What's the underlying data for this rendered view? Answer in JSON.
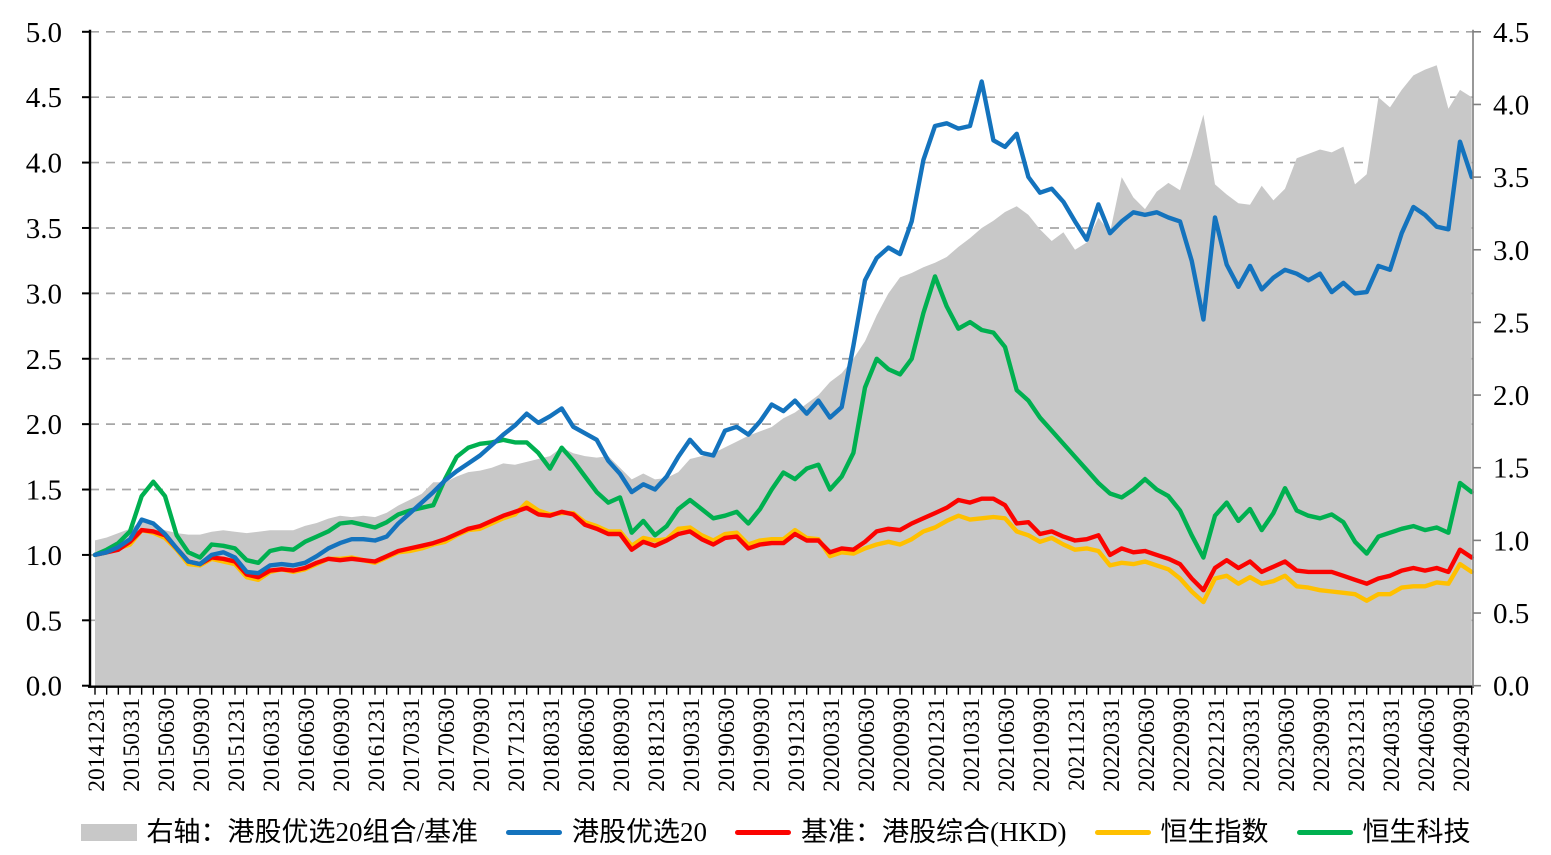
{
  "chart_data": {
    "type": "line",
    "title": "",
    "grid": true,
    "legend_position": "bottom",
    "x_axis": {
      "tick_labels": [
        "20141231",
        "20150331",
        "20150630",
        "20150930",
        "20151231",
        "20160331",
        "20160630",
        "20160930",
        "20161231",
        "20170331",
        "20170630",
        "20170930",
        "20171231",
        "20180331",
        "20180630",
        "20180930",
        "20181231",
        "20190331",
        "20190630",
        "20190930",
        "20191231",
        "20200331",
        "20200630",
        "20200930",
        "20201231",
        "20210331",
        "20210630",
        "20210930",
        "20211231",
        "20220331",
        "20220630",
        "20220930",
        "20221231",
        "20230331",
        "20230630",
        "20230930",
        "20231231",
        "20240331",
        "20240630",
        "20240930"
      ],
      "points_per_label": 3,
      "total_points": 119
    },
    "left_axis": {
      "min": 0.0,
      "max": 5.0,
      "step": 0.5,
      "tick_labels": [
        "0.0",
        "0.5",
        "1.0",
        "1.5",
        "2.0",
        "2.5",
        "3.0",
        "3.5",
        "4.0",
        "4.5",
        "5.0"
      ]
    },
    "right_axis": {
      "min": 0.0,
      "max": 4.5,
      "step": 0.5,
      "tick_labels": [
        "0.0",
        "0.5",
        "1.0",
        "1.5",
        "2.0",
        "2.5",
        "3.0",
        "3.5",
        "4.0",
        "4.5"
      ]
    },
    "colors": {
      "grid": "#a6a6a6",
      "axis": "#000000",
      "right_axis_line": "#7f7f7f",
      "background": "#ffffff"
    },
    "z_order": [
      0,
      3,
      2,
      4,
      1
    ],
    "series": [
      {
        "name": "右轴：港股优选20组合/基准",
        "type": "area",
        "axis": "right",
        "color": "#c8c8c8",
        "values": [
          1.0,
          1.02,
          1.05,
          1.08,
          1.13,
          1.1,
          1.07,
          1.05,
          1.04,
          1.04,
          1.06,
          1.07,
          1.06,
          1.05,
          1.06,
          1.07,
          1.07,
          1.07,
          1.1,
          1.12,
          1.15,
          1.17,
          1.16,
          1.17,
          1.16,
          1.19,
          1.24,
          1.28,
          1.32,
          1.4,
          1.4,
          1.44,
          1.47,
          1.48,
          1.5,
          1.53,
          1.52,
          1.54,
          1.56,
          1.58,
          1.64,
          1.6,
          1.58,
          1.57,
          1.58,
          1.5,
          1.42,
          1.46,
          1.42,
          1.43,
          1.47,
          1.56,
          1.58,
          1.6,
          1.64,
          1.68,
          1.72,
          1.75,
          1.78,
          1.84,
          1.88,
          1.94,
          2.0,
          2.09,
          2.15,
          2.25,
          2.37,
          2.55,
          2.7,
          2.81,
          2.84,
          2.88,
          2.91,
          2.95,
          3.02,
          3.08,
          3.15,
          3.2,
          3.26,
          3.3,
          3.24,
          3.14,
          3.06,
          3.12,
          3.0,
          3.05,
          3.22,
          3.12,
          3.5,
          3.36,
          3.28,
          3.4,
          3.46,
          3.41,
          3.65,
          3.93,
          3.45,
          3.38,
          3.32,
          3.31,
          3.44,
          3.34,
          3.42,
          3.63,
          3.66,
          3.69,
          3.67,
          3.71,
          3.45,
          3.52,
          4.05,
          3.98,
          4.1,
          4.2,
          4.24,
          4.27,
          3.97,
          4.1,
          4.05
        ]
      },
      {
        "name": "港股优选20",
        "type": "line",
        "axis": "left",
        "color": "#1473bd",
        "values": [
          1.0,
          1.02,
          1.06,
          1.12,
          1.27,
          1.24,
          1.16,
          1.05,
          0.95,
          0.93,
          1.0,
          1.02,
          0.98,
          0.87,
          0.86,
          0.92,
          0.93,
          0.92,
          0.94,
          0.99,
          1.05,
          1.09,
          1.12,
          1.12,
          1.11,
          1.14,
          1.24,
          1.32,
          1.4,
          1.48,
          1.57,
          1.64,
          1.7,
          1.76,
          1.84,
          1.92,
          1.99,
          2.08,
          2.01,
          2.06,
          2.12,
          1.98,
          1.93,
          1.88,
          1.72,
          1.62,
          1.48,
          1.54,
          1.5,
          1.6,
          1.75,
          1.88,
          1.78,
          1.76,
          1.95,
          1.98,
          1.92,
          2.02,
          2.15,
          2.1,
          2.18,
          2.08,
          2.18,
          2.05,
          2.13,
          2.6,
          3.1,
          3.27,
          3.35,
          3.3,
          3.55,
          4.02,
          4.28,
          4.3,
          4.26,
          4.28,
          4.62,
          4.17,
          4.12,
          4.22,
          3.89,
          3.77,
          3.8,
          3.7,
          3.55,
          3.41,
          3.68,
          3.46,
          3.55,
          3.62,
          3.6,
          3.62,
          3.58,
          3.55,
          3.25,
          2.8,
          3.58,
          3.22,
          3.05,
          3.21,
          3.03,
          3.12,
          3.18,
          3.15,
          3.1,
          3.15,
          3.01,
          3.08,
          3.0,
          3.01,
          3.21,
          3.18,
          3.46,
          3.66,
          3.6,
          3.51,
          3.49,
          4.16,
          3.89
        ]
      },
      {
        "name": "基准：港股综合(HKD)",
        "type": "line",
        "axis": "left",
        "color": "#fb0300",
        "values": [
          1.0,
          1.02,
          1.04,
          1.1,
          1.19,
          1.18,
          1.15,
          1.05,
          0.95,
          0.93,
          0.98,
          0.97,
          0.95,
          0.85,
          0.83,
          0.88,
          0.89,
          0.88,
          0.9,
          0.94,
          0.97,
          0.96,
          0.97,
          0.96,
          0.95,
          0.99,
          1.03,
          1.05,
          1.07,
          1.09,
          1.12,
          1.16,
          1.2,
          1.22,
          1.26,
          1.3,
          1.33,
          1.36,
          1.31,
          1.3,
          1.33,
          1.31,
          1.23,
          1.2,
          1.16,
          1.16,
          1.04,
          1.1,
          1.07,
          1.11,
          1.16,
          1.18,
          1.12,
          1.08,
          1.13,
          1.14,
          1.05,
          1.08,
          1.09,
          1.09,
          1.16,
          1.11,
          1.11,
          1.02,
          1.05,
          1.04,
          1.1,
          1.18,
          1.2,
          1.19,
          1.24,
          1.28,
          1.32,
          1.36,
          1.42,
          1.4,
          1.43,
          1.43,
          1.38,
          1.24,
          1.25,
          1.16,
          1.18,
          1.14,
          1.11,
          1.12,
          1.15,
          1.0,
          1.05,
          1.02,
          1.03,
          1.0,
          0.97,
          0.93,
          0.82,
          0.73,
          0.9,
          0.96,
          0.9,
          0.95,
          0.87,
          0.91,
          0.95,
          0.88,
          0.87,
          0.87,
          0.87,
          0.84,
          0.81,
          0.78,
          0.82,
          0.84,
          0.88,
          0.9,
          0.88,
          0.9,
          0.87,
          1.04,
          0.98
        ]
      },
      {
        "name": "恒生指数",
        "type": "line",
        "axis": "left",
        "color": "#ffc000",
        "values": [
          1.0,
          1.02,
          1.05,
          1.08,
          1.19,
          1.17,
          1.13,
          1.04,
          0.93,
          0.92,
          0.97,
          0.95,
          0.93,
          0.83,
          0.81,
          0.87,
          0.89,
          0.87,
          0.89,
          0.93,
          0.97,
          0.97,
          0.98,
          0.96,
          0.94,
          0.98,
          1.02,
          1.03,
          1.05,
          1.08,
          1.1,
          1.15,
          1.19,
          1.2,
          1.24,
          1.28,
          1.31,
          1.4,
          1.34,
          1.31,
          1.32,
          1.32,
          1.25,
          1.22,
          1.18,
          1.18,
          1.07,
          1.13,
          1.11,
          1.12,
          1.2,
          1.21,
          1.15,
          1.11,
          1.16,
          1.17,
          1.08,
          1.11,
          1.12,
          1.12,
          1.19,
          1.13,
          1.12,
          0.99,
          1.02,
          1.01,
          1.05,
          1.08,
          1.1,
          1.08,
          1.12,
          1.18,
          1.21,
          1.26,
          1.3,
          1.27,
          1.28,
          1.29,
          1.28,
          1.18,
          1.15,
          1.1,
          1.13,
          1.08,
          1.04,
          1.05,
          1.03,
          0.92,
          0.94,
          0.93,
          0.95,
          0.92,
          0.89,
          0.82,
          0.72,
          0.64,
          0.82,
          0.84,
          0.78,
          0.83,
          0.78,
          0.8,
          0.84,
          0.76,
          0.75,
          0.73,
          0.72,
          0.71,
          0.7,
          0.65,
          0.7,
          0.7,
          0.75,
          0.76,
          0.76,
          0.79,
          0.78,
          0.93,
          0.87
        ]
      },
      {
        "name": "恒生科技",
        "type": "line",
        "axis": "left",
        "color": "#00b050",
        "values": [
          1.0,
          1.04,
          1.09,
          1.18,
          1.45,
          1.56,
          1.45,
          1.15,
          1.02,
          0.98,
          1.08,
          1.07,
          1.05,
          0.96,
          0.94,
          1.03,
          1.05,
          1.04,
          1.1,
          1.14,
          1.18,
          1.24,
          1.25,
          1.23,
          1.21,
          1.25,
          1.31,
          1.34,
          1.36,
          1.38,
          1.58,
          1.75,
          1.82,
          1.85,
          1.86,
          1.88,
          1.86,
          1.86,
          1.78,
          1.66,
          1.82,
          1.72,
          1.6,
          1.48,
          1.4,
          1.44,
          1.17,
          1.26,
          1.15,
          1.22,
          1.35,
          1.42,
          1.35,
          1.28,
          1.3,
          1.33,
          1.24,
          1.35,
          1.5,
          1.63,
          1.58,
          1.66,
          1.69,
          1.5,
          1.6,
          1.78,
          2.28,
          2.5,
          2.42,
          2.38,
          2.5,
          2.85,
          3.13,
          2.9,
          2.73,
          2.78,
          2.72,
          2.7,
          2.59,
          2.26,
          2.18,
          2.05,
          1.95,
          1.85,
          1.75,
          1.65,
          1.55,
          1.47,
          1.44,
          1.5,
          1.58,
          1.5,
          1.45,
          1.34,
          1.15,
          0.98,
          1.3,
          1.4,
          1.26,
          1.35,
          1.19,
          1.32,
          1.51,
          1.34,
          1.3,
          1.28,
          1.31,
          1.25,
          1.1,
          1.01,
          1.14,
          1.17,
          1.2,
          1.22,
          1.19,
          1.21,
          1.17,
          1.55,
          1.48
        ]
      }
    ]
  }
}
